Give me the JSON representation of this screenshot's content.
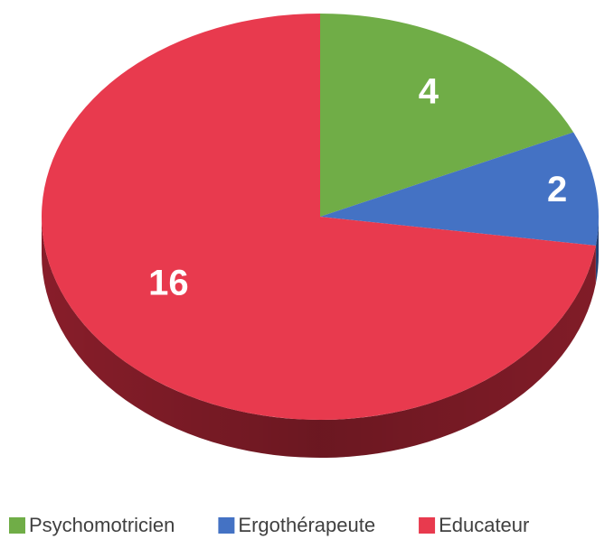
{
  "chart_data": {
    "type": "pie",
    "categories": [
      "Psychomotricien",
      "Ergothérapeute",
      "Educateur"
    ],
    "values": [
      4,
      2,
      16
    ],
    "colors": [
      "#70ad47",
      "#4472c4",
      "#e83a4e"
    ],
    "side_colors": [
      "#4a7a2c",
      "#2c4f8c",
      "#8f1f2c"
    ]
  }
}
